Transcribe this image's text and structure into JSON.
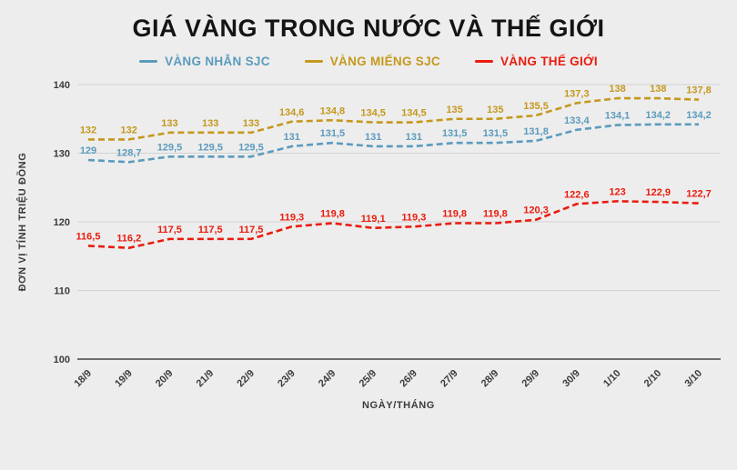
{
  "title": "GIÁ VÀNG TRONG NƯỚC VÀ THẾ GIỚI",
  "colors": {
    "background": "#ededed",
    "grid": "#d2d2d2",
    "axis": "#444444",
    "text": "#3a3a3a"
  },
  "chart_data": {
    "type": "line",
    "title": "GIÁ VÀNG TRONG NƯỚC VÀ THẾ GIỚI",
    "x": [
      "18/9",
      "19/9",
      "20/9",
      "21/9",
      "22/9",
      "23/9",
      "24/9",
      "25/9",
      "26/9",
      "27/9",
      "28/9",
      "29/9",
      "30/9",
      "1/10",
      "2/10",
      "3/10"
    ],
    "series": [
      {
        "name": "VÀNG NHẪN SJC",
        "color": "#5b9bbd",
        "values": [
          129,
          128.7,
          129.5,
          129.5,
          129.5,
          131,
          131.5,
          131,
          131,
          131.5,
          131.5,
          131.8,
          133.4,
          134.1,
          134.2,
          134.2
        ],
        "labels": [
          "129",
          "128,7",
          "129,5",
          "129,5",
          "129,5",
          "131",
          "131,5",
          "131",
          "131",
          "131,5",
          "131,5",
          "131,8",
          "133,4",
          "134,1",
          "134,2",
          "134,2"
        ]
      },
      {
        "name": "VÀNG MIẾNG SJC",
        "color": "#c5981d",
        "values": [
          132,
          132,
          133,
          133,
          133,
          134.6,
          134.8,
          134.5,
          134.5,
          135,
          135,
          135.5,
          137.3,
          138,
          138,
          137.8
        ],
        "labels": [
          "132",
          "132",
          "133",
          "133",
          "133",
          "134,6",
          "134,8",
          "134,5",
          "134,5",
          "135",
          "135",
          "135,5",
          "137,3",
          "138",
          "138",
          "137,8"
        ]
      },
      {
        "name": "VÀNG THẾ GIỚI",
        "color": "#ea1b0d",
        "values": [
          116.5,
          116.2,
          117.5,
          117.5,
          117.5,
          119.3,
          119.8,
          119.1,
          119.3,
          119.8,
          119.8,
          120.3,
          122.6,
          123,
          122.9,
          122.7
        ],
        "labels": [
          "116,5",
          "116,2",
          "117,5",
          "117,5",
          "117,5",
          "119,3",
          "119,8",
          "119,1",
          "119,3",
          "119,8",
          "119,8",
          "120,3",
          "122,6",
          "123",
          "122,9",
          "122,7"
        ]
      }
    ],
    "xlabel": "NGÀY/THÁNG",
    "ylabel": "ĐƠN VỊ TÍNH TRIỆU ĐỒNG",
    "ylim": [
      100,
      140
    ],
    "yticks": [
      100,
      110,
      120,
      130,
      140
    ],
    "grid": true,
    "legend_position": "top",
    "line_style": "dashed"
  }
}
